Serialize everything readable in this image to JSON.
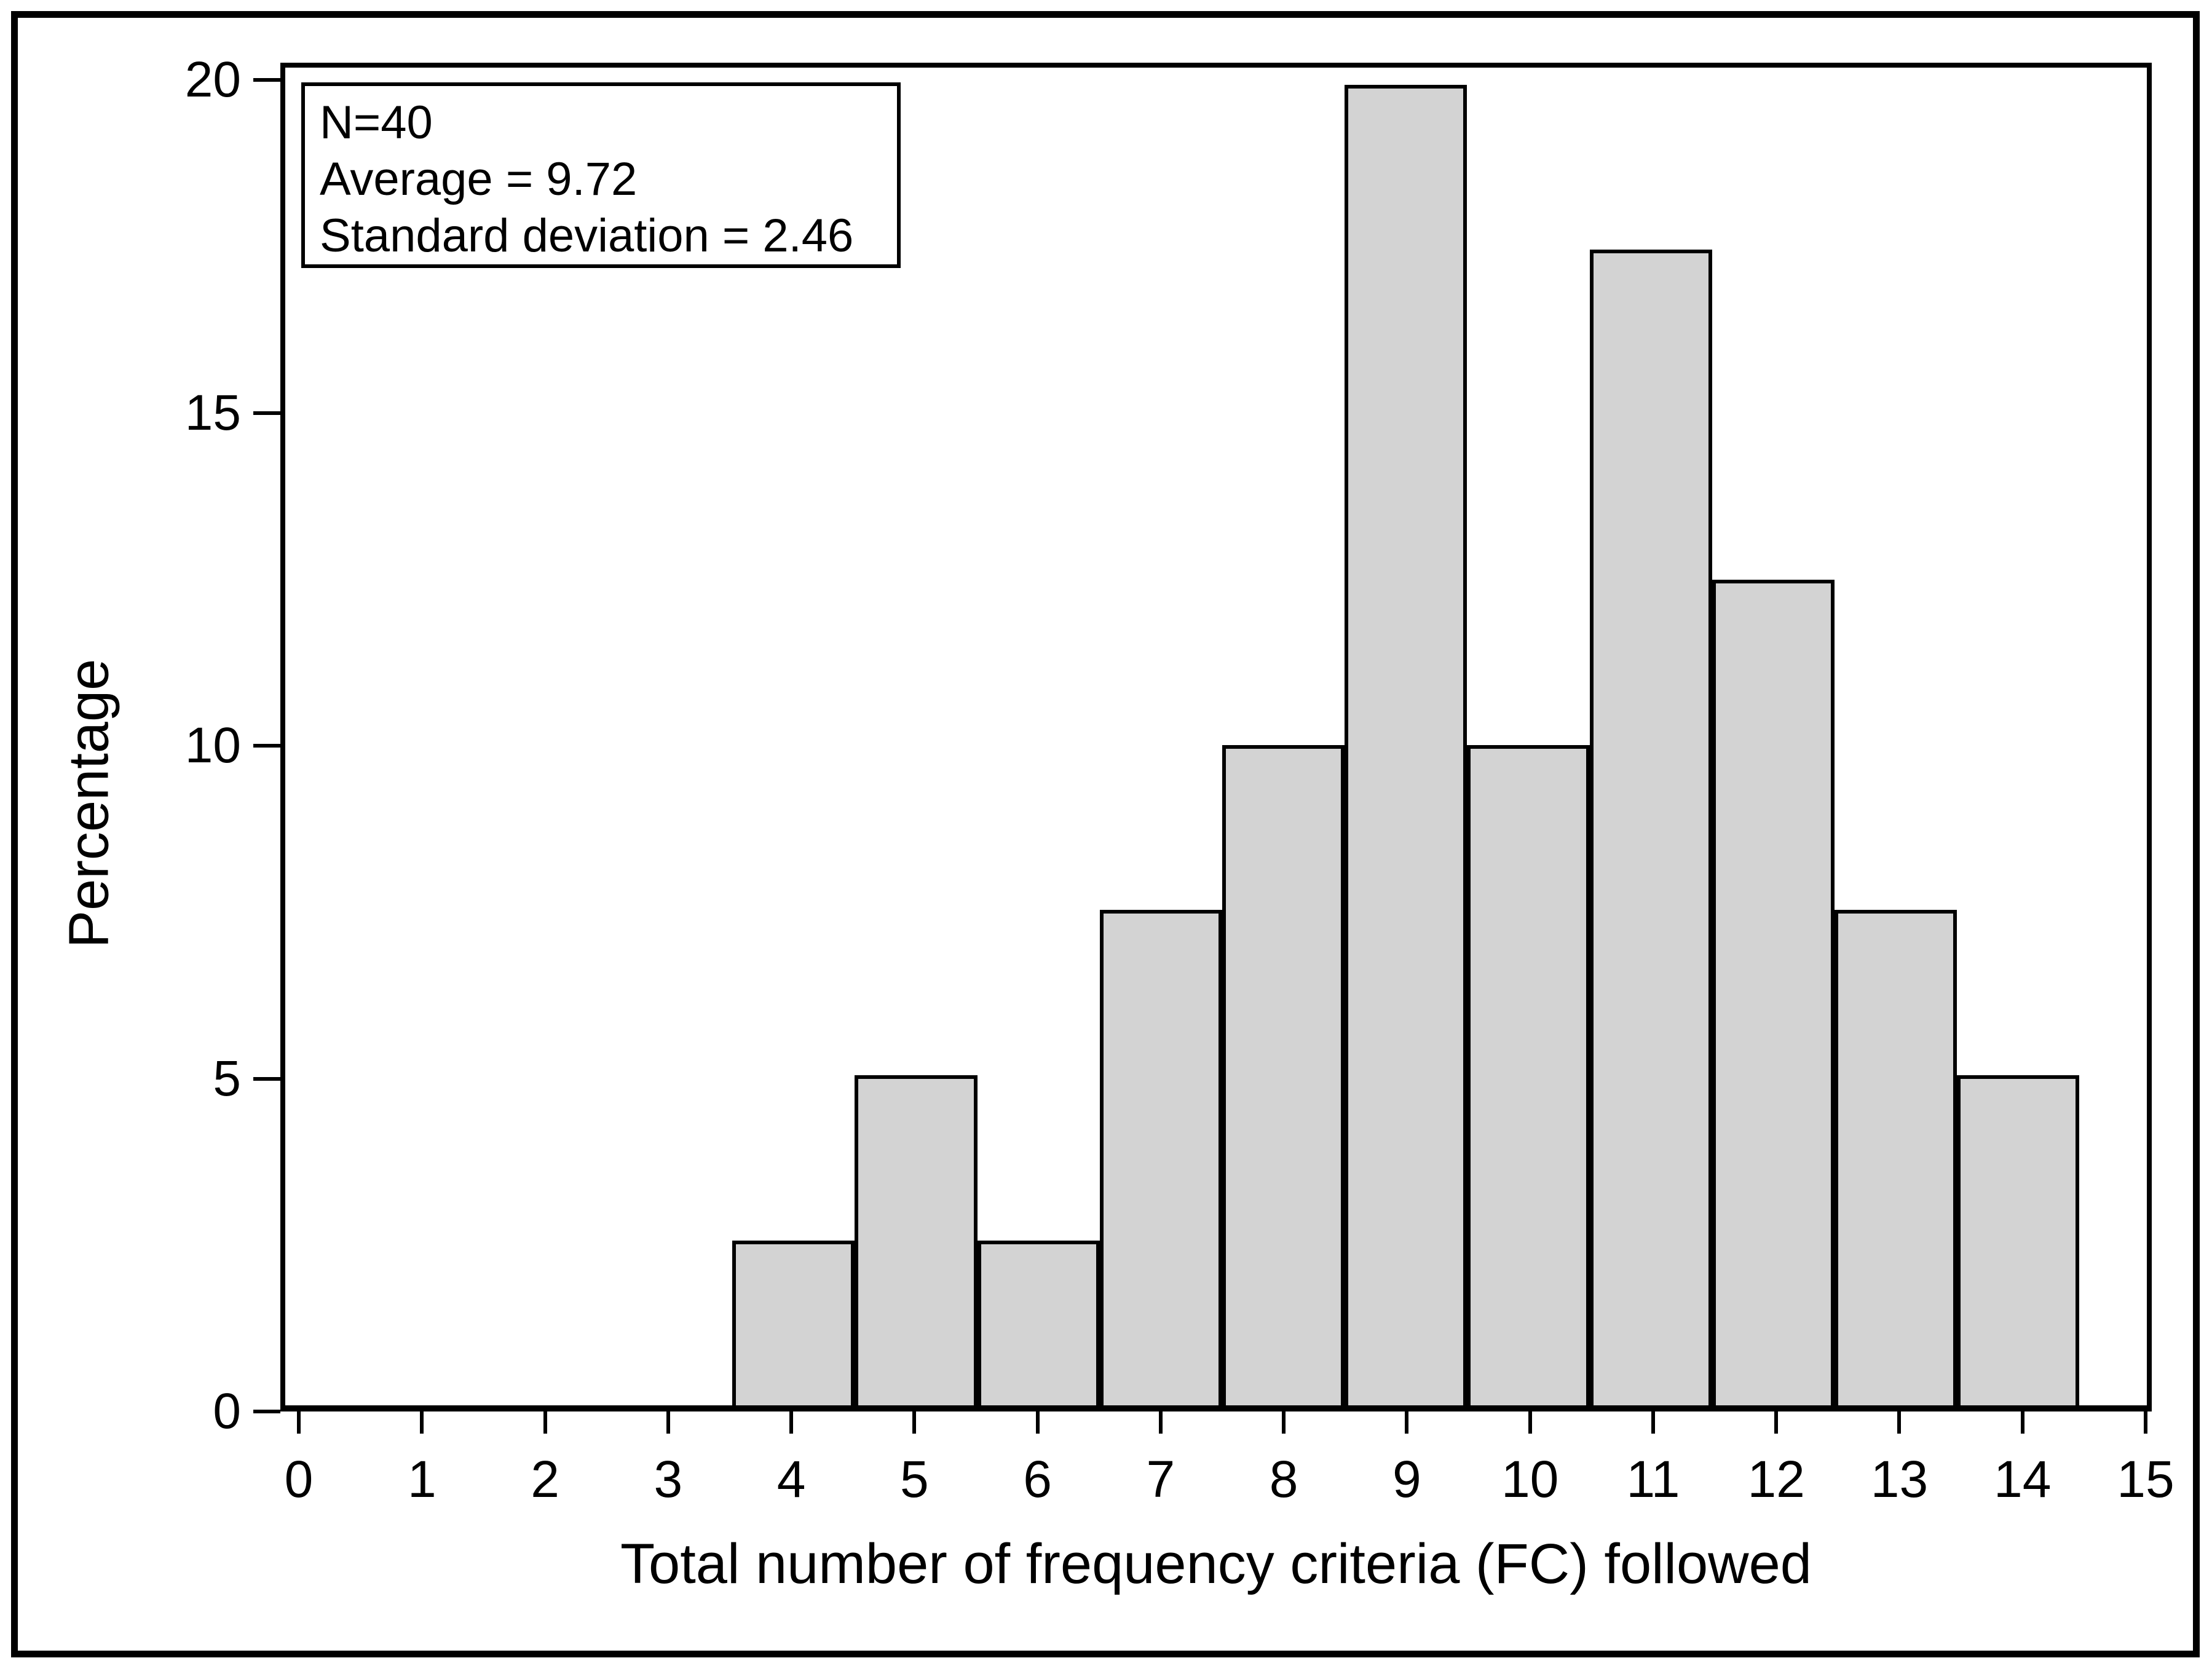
{
  "chart_data": {
    "type": "bar",
    "title": "",
    "xlabel": "Total number of frequency criteria (FC) followed",
    "ylabel": "Percentage",
    "categories": [
      4,
      5,
      6,
      7,
      8,
      9,
      10,
      11,
      12,
      13,
      14
    ],
    "values": [
      2.5,
      5,
      2.5,
      7.5,
      10,
      20,
      10,
      17.5,
      12.5,
      7.5,
      5
    ],
    "bar_width": 1,
    "x_ticks": [
      0,
      1,
      2,
      3,
      4,
      5,
      6,
      7,
      8,
      9,
      10,
      11,
      12,
      13,
      14,
      15
    ],
    "y_ticks": [
      0,
      5,
      10,
      15,
      20
    ],
    "xlim": [
      -0.15,
      15.05
    ],
    "ylim": [
      0,
      20.26
    ],
    "grid": false,
    "annotation": {
      "lines": [
        "N=40",
        "Average = 9.72",
        "Standard deviation = 2.46"
      ]
    },
    "colors": {
      "bar_fill": "#d3d3d3",
      "bar_border": "#000000",
      "axis": "#000000",
      "background": "#ffffff",
      "text": "#000000"
    }
  }
}
